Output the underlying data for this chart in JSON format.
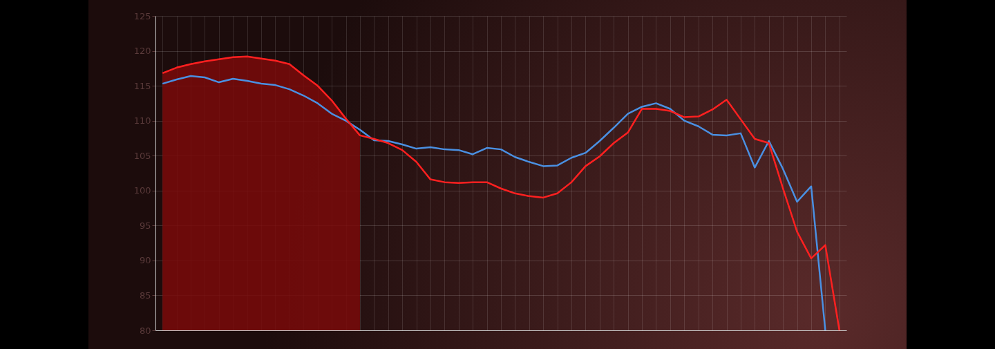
{
  "chart_data": {
    "type": "line",
    "categories": [
      null,
      null,
      null,
      null,
      null,
      null,
      null,
      null,
      null,
      null,
      null,
      null,
      null,
      null,
      null,
      null,
      null,
      null,
      null,
      null,
      null,
      null,
      null,
      null,
      null,
      null,
      null,
      null,
      null,
      null,
      null,
      null,
      null,
      null,
      null,
      null,
      null,
      null,
      null,
      null,
      null,
      null,
      null,
      null,
      null,
      null,
      null,
      null,
      null
    ],
    "series": [
      {
        "type": "area",
        "color": "#7a0a0a",
        "values": [
          116.8,
          117.6,
          118.1,
          118.5,
          118.8,
          119.1,
          119.2,
          118.9,
          118.6,
          118.1,
          116.5,
          115.0,
          112.9,
          110.3,
          107.9,
          null,
          null,
          null,
          null,
          null,
          null,
          null,
          null,
          null,
          null,
          null,
          null,
          null,
          null,
          null,
          null,
          null,
          null,
          null,
          null,
          null,
          null,
          null,
          null,
          null,
          null,
          null,
          null,
          null,
          null,
          null,
          null,
          null,
          null
        ]
      },
      {
        "color": "#4a90e2",
        "values": [
          115.3,
          115.9,
          116.4,
          116.2,
          115.5,
          116.0,
          115.7,
          115.3,
          115.1,
          114.5,
          113.6,
          112.5,
          111.0,
          110.0,
          108.7,
          107.2,
          107.1,
          106.6,
          106.0,
          106.2,
          105.9,
          105.8,
          105.2,
          106.1,
          105.9,
          104.8,
          104.1,
          103.5,
          103.6,
          104.7,
          105.4,
          107.1,
          109.0,
          111.0,
          112.0,
          112.5,
          111.7,
          110.0,
          109.2,
          108.0,
          107.9,
          108.2,
          103.3,
          107.1,
          103.1,
          98.4,
          100.6,
          80.0,
          null
        ]
      },
      {
        "color": "#ff2020",
        "values": [
          116.8,
          117.6,
          118.1,
          118.5,
          118.8,
          119.1,
          119.2,
          118.9,
          118.6,
          118.1,
          116.5,
          115.0,
          112.9,
          110.3,
          107.9,
          107.4,
          106.8,
          105.8,
          104.1,
          101.6,
          101.2,
          101.1,
          101.2,
          101.2,
          100.3,
          99.6,
          99.2,
          99.0,
          99.6,
          101.2,
          103.5,
          104.9,
          106.8,
          108.3,
          111.7,
          111.7,
          111.4,
          110.5,
          110.6,
          111.6,
          113.0,
          110.2,
          107.4,
          106.8,
          100.3,
          94.1,
          90.3,
          92.2,
          80.0
        ]
      }
    ],
    "ylim": [
      80,
      125
    ],
    "yticks": [
      80,
      85,
      90,
      95,
      100,
      105,
      110,
      115,
      120,
      125
    ],
    "grid": true,
    "tick_labels": "y",
    "line_style": "solid"
  }
}
